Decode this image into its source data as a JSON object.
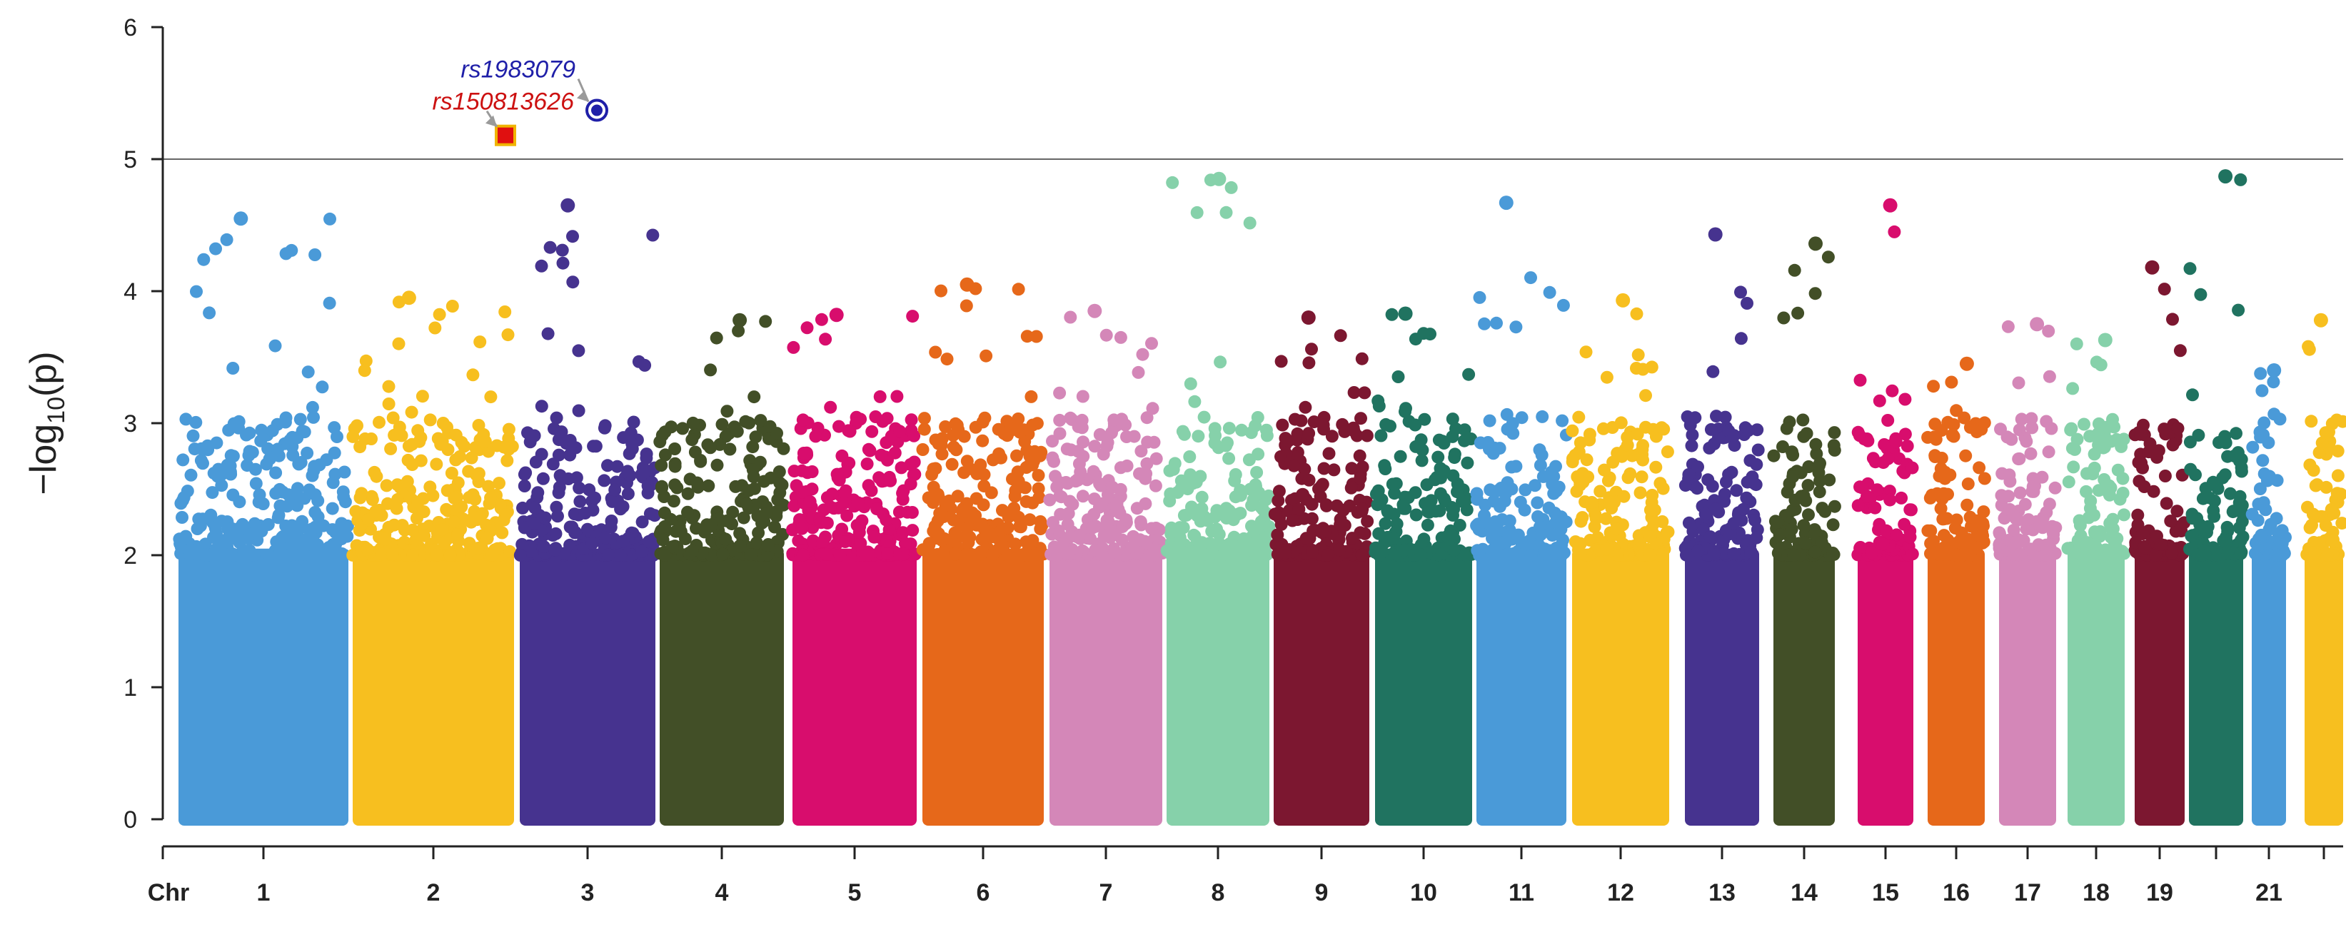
{
  "chart_data": {
    "type": "scatter",
    "title": "",
    "xlabel": "Chr",
    "ylabel": "−log10(p)",
    "ylim": [
      0,
      6
    ],
    "yticks": [
      "0",
      "1",
      "2",
      "3",
      "4",
      "5",
      "6"
    ],
    "threshold": 5,
    "grid": false,
    "legend": "none",
    "colors": {
      "threshold_line": "#666666",
      "axis": "#222222",
      "annotation_blue": "#1f1fa8",
      "annotation_red": "#cc1111",
      "highlight_square_fill": "#e01010",
      "highlight_square_border": "#f0b400"
    },
    "chromosomes": [
      {
        "chr": "1",
        "label": "1",
        "color": "#4a9ad8",
        "max": 4.55
      },
      {
        "chr": "2",
        "label": "2",
        "color": "#f7bf1f",
        "max": 3.95
      },
      {
        "chr": "3",
        "label": "3",
        "color": "#46338f",
        "max": 4.65
      },
      {
        "chr": "4",
        "label": "4",
        "color": "#424f27",
        "max": 3.78
      },
      {
        "chr": "5",
        "label": "5",
        "color": "#d80d6d",
        "max": 3.82
      },
      {
        "chr": "6",
        "label": "6",
        "color": "#e6681a",
        "max": 4.05
      },
      {
        "chr": "7",
        "label": "7",
        "color": "#d487b8",
        "max": 3.85
      },
      {
        "chr": "8",
        "label": "8",
        "color": "#86d1aa",
        "max": 4.85
      },
      {
        "chr": "9",
        "label": "9",
        "color": "#7c1730",
        "max": 3.8
      },
      {
        "chr": "10",
        "label": "10",
        "color": "#207360",
        "max": 3.83
      },
      {
        "chr": "11",
        "label": "11",
        "color": "#4a9ad8",
        "max": 4.67
      },
      {
        "chr": "12",
        "label": "12",
        "color": "#f7bf1f",
        "max": 3.93
      },
      {
        "chr": "13",
        "label": "13",
        "color": "#46338f",
        "max": 4.43
      },
      {
        "chr": "14",
        "label": "14",
        "color": "#424f27",
        "max": 4.36
      },
      {
        "chr": "15",
        "label": "15",
        "color": "#d80d6d",
        "max": 4.65
      },
      {
        "chr": "16",
        "label": "16",
        "color": "#e6681a",
        "max": 3.45
      },
      {
        "chr": "17",
        "label": "17",
        "color": "#d487b8",
        "max": 3.75
      },
      {
        "chr": "18",
        "label": "18",
        "color": "#86d1aa",
        "max": 3.63
      },
      {
        "chr": "19",
        "label": "19",
        "color": "#7c1730",
        "max": 4.18
      },
      {
        "chr": "20",
        "label": "",
        "color": "#207360",
        "max": 4.87
      },
      {
        "chr": "21",
        "label": "21",
        "color": "#4a9ad8",
        "max": 3.4
      },
      {
        "chr": "22",
        "label": "",
        "color": "#f7bf1f",
        "max": 3.78
      }
    ],
    "annotations": [
      {
        "name": "rs1983079",
        "chr": "3",
        "y": 5.37,
        "marker": "circle",
        "color": "#1f1fa8"
      },
      {
        "name": "rs150813626",
        "chr": "2",
        "y": 5.18,
        "marker": "square",
        "color": "#cc1111"
      }
    ]
  }
}
